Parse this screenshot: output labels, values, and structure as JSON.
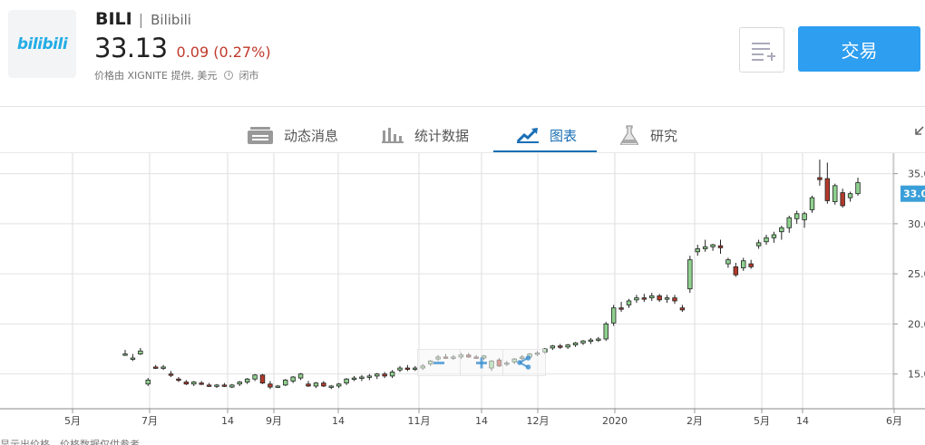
{
  "header": {
    "logo_text": "bilibili",
    "ticker": "BILI",
    "separator": "|",
    "company": "Bilibili",
    "price": "33.13",
    "change": "0.09 (0.27%)",
    "price_source": "价格由 XIGNITE 提供, 美元",
    "market_status": "闭市",
    "trade_label": "交易"
  },
  "tabs": [
    {
      "label": "动态消息",
      "icon": "news-icon"
    },
    {
      "label": "统计数据",
      "icon": "bar-chart-icon"
    },
    {
      "label": "图表",
      "icon": "trend-chart-icon",
      "active": true
    },
    {
      "label": "研究",
      "icon": "flask-icon"
    }
  ],
  "colors": {
    "accent": "#2d9ef0",
    "active_tab": "#1a6fb5",
    "down": "#c0392b",
    "candle_up": "#8fd18f",
    "candle_down": "#b33a2b",
    "price_tag": "#3a9fd8"
  },
  "chart_data": {
    "type": "candlestick",
    "x_ticks": [
      "5月",
      "7月",
      "14",
      "9月",
      "14",
      "11月",
      "14",
      "12月",
      "2020",
      "2月",
      "5月",
      "14",
      "6月"
    ],
    "y_ticks": [
      "35.0",
      "30.0",
      "25.0",
      "20.0",
      "15.0"
    ],
    "ylim": [
      12.8,
      36.5
    ],
    "current_price_tag": "33.0",
    "grid": true,
    "candles": [
      [
        17.0,
        17.4,
        16.8,
        17.0
      ],
      [
        16.5,
        17.0,
        16.3,
        16.6
      ],
      [
        17.0,
        17.6,
        16.9,
        17.3
      ],
      [
        14.0,
        14.6,
        13.8,
        14.4
      ],
      [
        15.7,
        15.9,
        15.5,
        15.6
      ],
      [
        15.6,
        15.9,
        15.4,
        15.7
      ],
      [
        15.0,
        15.3,
        14.7,
        14.9
      ],
      [
        14.5,
        14.7,
        14.2,
        14.4
      ],
      [
        14.2,
        14.4,
        13.9,
        14.0
      ],
      [
        14.0,
        14.3,
        13.8,
        14.2
      ],
      [
        14.1,
        14.3,
        13.9,
        14.0
      ],
      [
        13.9,
        14.1,
        13.7,
        13.8
      ],
      [
        13.8,
        14.0,
        13.6,
        13.9
      ],
      [
        13.9,
        14.1,
        13.7,
        13.8
      ],
      [
        13.7,
        14.0,
        13.6,
        13.9
      ],
      [
        14.0,
        14.3,
        13.8,
        14.2
      ],
      [
        14.2,
        14.6,
        14.0,
        14.5
      ],
      [
        14.5,
        15.0,
        14.3,
        14.9
      ],
      [
        14.9,
        15.0,
        14.0,
        14.1
      ],
      [
        14.0,
        14.3,
        13.5,
        13.7
      ],
      [
        13.7,
        13.9,
        13.6,
        13.8
      ],
      [
        13.9,
        14.5,
        13.8,
        14.4
      ],
      [
        14.3,
        14.8,
        14.1,
        14.7
      ],
      [
        14.6,
        15.1,
        14.4,
        15.0
      ],
      [
        14.0,
        14.3,
        13.7,
        13.8
      ],
      [
        13.8,
        14.2,
        13.6,
        14.1
      ],
      [
        14.1,
        14.3,
        13.7,
        13.8
      ],
      [
        13.7,
        13.9,
        13.5,
        13.8
      ],
      [
        13.8,
        14.1,
        13.6,
        14.0
      ],
      [
        14.1,
        14.6,
        13.9,
        14.5
      ],
      [
        14.5,
        14.8,
        14.3,
        14.6
      ],
      [
        14.6,
        14.9,
        14.3,
        14.7
      ],
      [
        14.7,
        15.0,
        14.4,
        14.8
      ],
      [
        14.8,
        15.1,
        14.5,
        15.0
      ],
      [
        15.0,
        15.2,
        14.6,
        14.8
      ],
      [
        14.8,
        15.4,
        14.6,
        15.2
      ],
      [
        15.4,
        15.8,
        15.2,
        15.6
      ],
      [
        15.6,
        15.9,
        15.3,
        15.5
      ],
      [
        15.5,
        15.8,
        15.3,
        15.6
      ],
      [
        15.6,
        16.0,
        15.4,
        15.8
      ],
      [
        16.0,
        16.4,
        15.8,
        16.3
      ],
      [
        16.5,
        16.9,
        16.3,
        16.7
      ],
      [
        16.7,
        17.0,
        16.5,
        16.6
      ],
      [
        16.6,
        16.9,
        16.4,
        16.7
      ],
      [
        16.7,
        17.1,
        16.5,
        16.9
      ],
      [
        16.9,
        17.1,
        16.6,
        16.7
      ],
      [
        16.7,
        16.9,
        16.5,
        16.6
      ],
      [
        16.6,
        16.9,
        16.4,
        16.8
      ],
      [
        15.6,
        16.4,
        15.3,
        16.3
      ],
      [
        16.4,
        16.6,
        15.7,
        15.8
      ],
      [
        16.0,
        16.3,
        15.8,
        16.1
      ],
      [
        16.2,
        16.6,
        16.0,
        16.5
      ],
      [
        16.6,
        16.9,
        16.4,
        16.7
      ],
      [
        16.7,
        17.1,
        16.5,
        17.0
      ],
      [
        17.0,
        17.3,
        16.8,
        17.1
      ],
      [
        17.2,
        17.6,
        17.0,
        17.5
      ],
      [
        17.6,
        17.9,
        17.4,
        17.8
      ],
      [
        17.8,
        18.0,
        17.5,
        17.7
      ],
      [
        17.7,
        18.0,
        17.5,
        17.9
      ],
      [
        17.9,
        18.2,
        17.7,
        18.1
      ],
      [
        18.1,
        18.4,
        17.9,
        18.3
      ],
      [
        18.3,
        18.6,
        18.0,
        18.4
      ],
      [
        18.4,
        18.7,
        18.2,
        18.5
      ],
      [
        18.5,
        20.2,
        18.3,
        20.0
      ],
      [
        20.1,
        21.9,
        19.8,
        21.6
      ],
      [
        21.6,
        22.2,
        21.2,
        21.5
      ],
      [
        21.9,
        22.5,
        21.6,
        22.3
      ],
      [
        22.4,
        22.9,
        22.1,
        22.6
      ],
      [
        22.6,
        23.0,
        22.2,
        22.5
      ],
      [
        22.6,
        23.1,
        22.3,
        22.8
      ],
      [
        22.8,
        23.0,
        22.2,
        22.4
      ],
      [
        22.5,
        22.9,
        22.1,
        22.6
      ],
      [
        22.6,
        22.9,
        22.0,
        22.3
      ],
      [
        21.6,
        21.9,
        21.2,
        21.4
      ],
      [
        23.5,
        26.8,
        23.1,
        26.4
      ],
      [
        27.2,
        27.9,
        26.8,
        27.5
      ],
      [
        27.5,
        28.4,
        27.2,
        27.7
      ],
      [
        27.7,
        28.0,
        27.3,
        27.9
      ],
      [
        27.8,
        28.4,
        27.0,
        27.6
      ],
      [
        26.0,
        26.6,
        25.6,
        26.4
      ],
      [
        25.7,
        26.1,
        24.7,
        24.9
      ],
      [
        25.6,
        26.6,
        25.3,
        26.3
      ],
      [
        26.0,
        26.4,
        25.5,
        25.7
      ],
      [
        27.8,
        28.4,
        27.5,
        28.1
      ],
      [
        28.2,
        28.9,
        27.9,
        28.6
      ],
      [
        28.6,
        29.2,
        28.1,
        28.9
      ],
      [
        29.2,
        29.8,
        28.4,
        29.6
      ],
      [
        29.6,
        30.8,
        29.1,
        30.6
      ],
      [
        30.5,
        31.3,
        30.0,
        31.0
      ],
      [
        30.4,
        31.2,
        29.6,
        31.0
      ],
      [
        31.4,
        32.8,
        31.1,
        32.6
      ],
      [
        34.6,
        36.4,
        33.8,
        34.4
      ],
      [
        34.5,
        36.1,
        32.0,
        32.3
      ],
      [
        32.2,
        34.0,
        31.9,
        33.8
      ],
      [
        33.1,
        33.5,
        31.6,
        31.8
      ],
      [
        32.6,
        33.2,
        32.2,
        33.0
      ],
      [
        33.0,
        34.6,
        32.8,
        34.1
      ]
    ]
  },
  "zoom_controls": [
    "zoom-out",
    "zoom-in",
    "share"
  ],
  "disclaimer": "显示出价格。价格数据仅供参考。"
}
